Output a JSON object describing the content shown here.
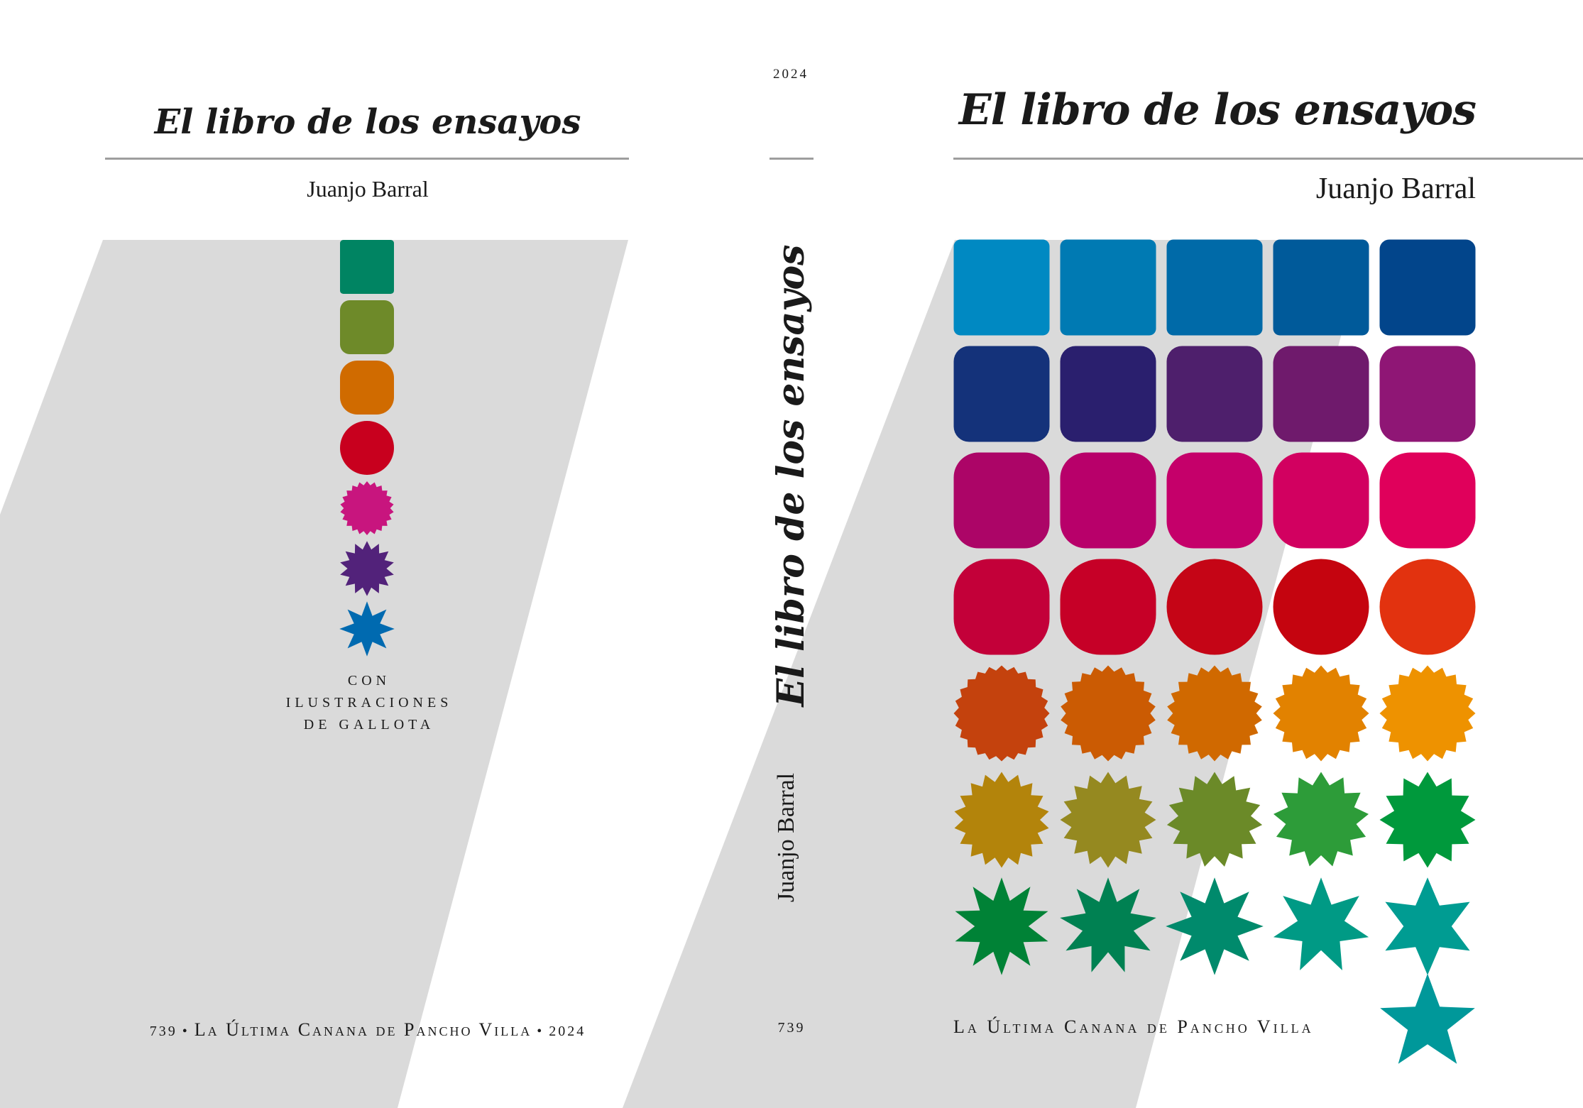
{
  "back_cover": {
    "title": "El libro de los ensayos",
    "author": "Juanjo Barral",
    "credit_lines": [
      "CON",
      "ILUSTRACIONES",
      "DE GALLOTA"
    ],
    "footer": {
      "number": "739",
      "sep": "•",
      "publisher": "La Última Canana de Pancho Villa",
      "year": "2024"
    }
  },
  "spine": {
    "year": "2024",
    "title": "El libro de los ensayos",
    "author": "Juanjo Barral",
    "number": "739"
  },
  "front_cover": {
    "title": "El libro de los ensayos",
    "author": "Juanjo Barral",
    "publisher": "La Última Canana de Pancho Villa"
  },
  "colors": {
    "band": "#dadada",
    "rule": "#9e9e9e",
    "back_column": [
      "#008462",
      "#6e8a29",
      "#d06b00",
      "#c8001e",
      "#c8157e",
      "#52227a",
      "#006ab0"
    ],
    "front_grid": [
      [
        "#0089c2",
        "#007ab3",
        "#006aa8",
        "#005a9a",
        "#02458b"
      ],
      [
        "#14327a",
        "#2a1f6e",
        "#4e1f6c",
        "#6f1a6c",
        "#8f1675"
      ],
      [
        "#ac0567",
        "#b8006a",
        "#c5006a",
        "#d20060",
        "#e0005b"
      ],
      [
        "#c30039",
        "#c60027",
        "#c50516",
        "#c5040f",
        "#e2320f"
      ],
      [
        "#c4420d",
        "#cb5b03",
        "#d06900",
        "#e28200",
        "#ee9200"
      ],
      [
        "#b3840b",
        "#958920",
        "#6b8a28",
        "#2d9c39",
        "#00993c"
      ],
      [
        "#008236",
        "#008152",
        "#008a6c",
        "#009a85",
        "#009c92"
      ]
    ],
    "front_extra": "#00989a"
  }
}
